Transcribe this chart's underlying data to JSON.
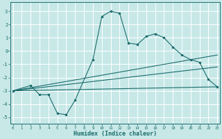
{
  "xlabel": "Humidex (Indice chaleur)",
  "xlim": [
    -0.3,
    23.3
  ],
  "ylim": [
    -5.5,
    3.7
  ],
  "yticks": [
    -5,
    -4,
    -3,
    -2,
    -1,
    0,
    1,
    2,
    3
  ],
  "xticks": [
    0,
    1,
    2,
    3,
    4,
    5,
    6,
    7,
    8,
    9,
    10,
    11,
    12,
    13,
    14,
    15,
    16,
    17,
    18,
    19,
    20,
    21,
    22,
    23
  ],
  "background_color": "#c8e8e8",
  "grid_color": "#b0d8d8",
  "line_color": "#1a6b6b",
  "main_series": {
    "x": [
      0,
      2,
      3,
      4,
      5,
      6,
      7,
      9,
      10,
      11,
      12,
      13,
      14,
      15,
      16,
      17,
      18,
      19,
      20,
      21,
      22,
      23
    ],
    "y": [
      -3.0,
      -2.6,
      -3.3,
      -3.3,
      -4.7,
      -4.8,
      -3.7,
      -0.65,
      2.6,
      3.0,
      2.85,
      0.6,
      0.5,
      1.1,
      1.3,
      1.0,
      0.3,
      -0.3,
      -0.65,
      -0.85,
      -2.15,
      -2.7
    ]
  },
  "trend_lines": [
    {
      "x": [
        0,
        23
      ],
      "y": [
        -3.0,
        -0.3
      ]
    },
    {
      "x": [
        0,
        23
      ],
      "y": [
        -3.0,
        -1.2
      ]
    },
    {
      "x": [
        0,
        23
      ],
      "y": [
        -3.0,
        -2.7
      ]
    }
  ]
}
